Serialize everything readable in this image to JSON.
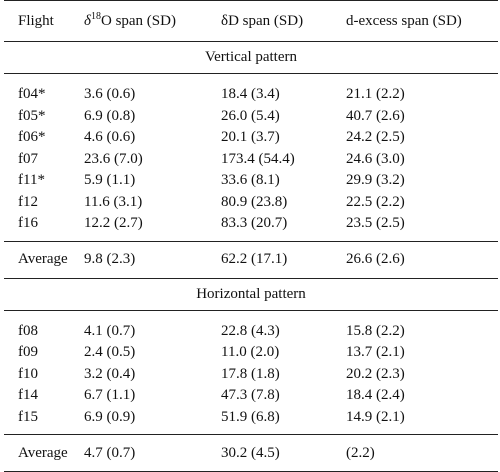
{
  "header": {
    "flight": "Flight",
    "d18o_delta": "δ",
    "d18o_sup": "18",
    "d18o_rest": "O span (SD)",
    "dd": "δD span (SD)",
    "dexcess": "d-excess span (SD)"
  },
  "vertical": {
    "title": "Vertical pattern",
    "rows": [
      {
        "flight": "f04*",
        "o18": "3.6 (0.6)",
        "dd": "18.4 (3.4)",
        "dex": "21.1 (2.2)"
      },
      {
        "flight": "f05*",
        "o18": "6.9 (0.8)",
        "dd": "26.0 (5.4)",
        "dex": "40.7 (2.6)"
      },
      {
        "flight": "f06*",
        "o18": "4.6 (0.6)",
        "dd": "20.1 (3.7)",
        "dex": "24.2 (2.5)"
      },
      {
        "flight": "f07",
        "o18": "23.6 (7.0)",
        "dd": "173.4 (54.4)",
        "dex": "24.6 (3.0)"
      },
      {
        "flight": "f11*",
        "o18": "5.9 (1.1)",
        "dd": "33.6 (8.1)",
        "dex": "29.9 (3.2)"
      },
      {
        "flight": "f12",
        "o18": "11.6 (3.1)",
        "dd": "80.9 (23.8)",
        "dex": "22.5 (2.2)"
      },
      {
        "flight": "f16",
        "o18": "12.2 (2.7)",
        "dd": "83.3 (20.7)",
        "dex": "23.5 (2.5)"
      }
    ],
    "average": {
      "flight": "Average",
      "o18": "9.8 (2.3)",
      "dd": "62.2 (17.1)",
      "dex": "26.6 (2.6)"
    }
  },
  "horizontal": {
    "title": "Horizontal pattern",
    "rows": [
      {
        "flight": "f08",
        "o18": "4.1 (0.7)",
        "dd": "22.8 (4.3)",
        "dex": "15.8 (2.2)"
      },
      {
        "flight": "f09",
        "o18": "2.4 (0.5)",
        "dd": "11.0 (2.0)",
        "dex": "13.7 (2.1)"
      },
      {
        "flight": "f10",
        "o18": "3.2 (0.4)",
        "dd": "17.8 (1.8)",
        "dex": "20.2 (2.3)"
      },
      {
        "flight": "f14",
        "o18": "6.7 (1.1)",
        "dd": "47.3 (7.8)",
        "dex": "18.4 (2.4)"
      },
      {
        "flight": "f15",
        "o18": "6.9 (0.9)",
        "dd": "51.9 (6.8)",
        "dex": "14.9 (2.1)"
      }
    ],
    "average": {
      "flight": "Average",
      "o18": "4.7 (0.7)",
      "dd": "30.2 (4.5)",
      "dex": "(2.2)"
    }
  }
}
